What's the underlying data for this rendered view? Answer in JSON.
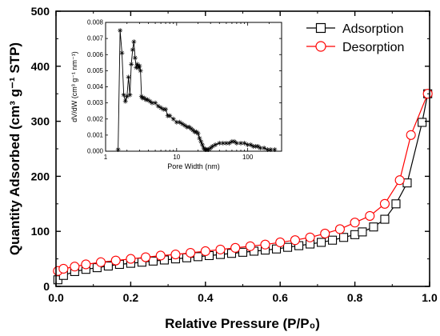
{
  "chart_data": [
    {
      "type": "line",
      "xlabel": "Relative Pressure (P/P₀)",
      "ylabel": "Quantity Adsorbed (cm³ g⁻¹ STP)",
      "xlim": [
        0,
        1.0
      ],
      "ylim": [
        0,
        500
      ],
      "xticks": [
        0.0,
        0.2,
        0.4,
        0.6,
        0.8,
        1.0
      ],
      "xtick_labels": [
        "0.0",
        "0.2",
        "0.4",
        "0.6",
        "0.8",
        "1.0"
      ],
      "yticks": [
        0,
        100,
        200,
        300,
        400,
        500
      ],
      "ytick_labels": [
        "0",
        "100",
        "200",
        "300",
        "400",
        "500"
      ],
      "legend_position": "top-right",
      "series": [
        {
          "name": "Adsorption",
          "color": "#000000",
          "marker": "square",
          "x": [
            0.005,
            0.02,
            0.05,
            0.08,
            0.11,
            0.14,
            0.17,
            0.2,
            0.23,
            0.26,
            0.29,
            0.32,
            0.35,
            0.38,
            0.41,
            0.44,
            0.47,
            0.5,
            0.53,
            0.56,
            0.59,
            0.62,
            0.65,
            0.68,
            0.71,
            0.74,
            0.77,
            0.8,
            0.82,
            0.85,
            0.88,
            0.91,
            0.94,
            0.98,
            0.995
          ],
          "y": [
            12,
            20,
            27,
            31,
            34,
            37,
            40,
            42,
            44,
            46,
            48,
            50,
            52,
            54,
            56,
            58,
            60,
            62,
            64,
            66,
            68,
            71,
            74,
            77,
            80,
            84,
            89,
            94,
            99,
            108,
            122,
            150,
            188,
            298,
            350
          ]
        },
        {
          "name": "Desorption",
          "color": "#ff0000",
          "marker": "circle",
          "x": [
            0.005,
            0.02,
            0.05,
            0.08,
            0.12,
            0.16,
            0.2,
            0.24,
            0.28,
            0.32,
            0.36,
            0.4,
            0.44,
            0.48,
            0.52,
            0.56,
            0.6,
            0.64,
            0.68,
            0.72,
            0.76,
            0.8,
            0.84,
            0.88,
            0.92,
            0.95,
            0.995
          ],
          "y": [
            28,
            32,
            36,
            40,
            44,
            47,
            50,
            53,
            56,
            58,
            61,
            64,
            67,
            70,
            73,
            76,
            80,
            84,
            89,
            96,
            104,
            116,
            128,
            150,
            193,
            275,
            350
          ]
        }
      ]
    },
    {
      "type": "line",
      "xlabel": "Pore Width (nm)",
      "ylabel": "dV/dW (cm³ g⁻¹ nm⁻¹)",
      "xscale": "log",
      "xlim": [
        1,
        300
      ],
      "ylim": [
        0,
        0.008
      ],
      "xticks": [
        1,
        10,
        100
      ],
      "xtick_labels": [
        "1",
        "10",
        "100"
      ],
      "yticks": [
        0,
        0.001,
        0.002,
        0.003,
        0.004,
        0.005,
        0.006,
        0.007,
        0.008
      ],
      "ytick_labels": [
        "0.000",
        "0.001",
        "0.002",
        "0.003",
        "0.004",
        "0.005",
        "0.006",
        "0.007",
        "0.008"
      ],
      "series": [
        {
          "color": "#000000",
          "marker": "asterisk",
          "x": [
            1.5,
            1.6,
            1.7,
            1.8,
            1.9,
            2.0,
            2.1,
            2.2,
            2.3,
            2.4,
            2.5,
            2.6,
            2.7,
            2.8,
            2.9,
            3.0,
            3.1,
            3.2,
            3.3,
            3.5,
            3.7,
            3.9,
            4.2,
            4.5,
            5,
            5.5,
            6,
            6.5,
            7,
            7.5,
            8,
            9,
            10,
            11,
            12,
            13,
            14,
            15,
            16,
            17,
            18,
            19,
            20,
            21,
            22,
            23,
            24,
            25,
            26,
            27,
            28,
            30,
            32,
            35,
            40,
            45,
            50,
            55,
            60,
            65,
            70,
            80,
            90,
            100,
            110,
            120,
            130,
            140,
            150,
            170,
            190,
            210,
            240
          ],
          "y": [
            0.0001,
            0.0075,
            0.0061,
            0.0035,
            0.0031,
            0.0034,
            0.0046,
            0.0035,
            0.0054,
            0.0063,
            0.0068,
            0.0058,
            0.0052,
            0.0054,
            0.0052,
            0.0053,
            0.005,
            0.0034,
            0.0033,
            0.0033,
            0.0032,
            0.0032,
            0.0031,
            0.003,
            0.003,
            0.0028,
            0.0027,
            0.0026,
            0.0026,
            0.0022,
            0.0022,
            0.002,
            0.0018,
            0.0018,
            0.0017,
            0.0016,
            0.0015,
            0.0015,
            0.0014,
            0.0013,
            0.0012,
            0.0012,
            0.0011,
            0.0008,
            0.0006,
            0.0004,
            0.0002,
            0.0001,
            0.0001,
            0.0001,
            0.0001,
            0.0002,
            0.0003,
            0.0004,
            0.0005,
            0.0005,
            0.0005,
            0.0005,
            0.0006,
            0.0006,
            0.0005,
            0.0005,
            0.0005,
            0.0004,
            0.0004,
            0.0003,
            0.0003,
            0.0003,
            0.0002,
            0.0002,
            0.0001,
            0.0001,
            0.0001
          ]
        }
      ]
    }
  ]
}
